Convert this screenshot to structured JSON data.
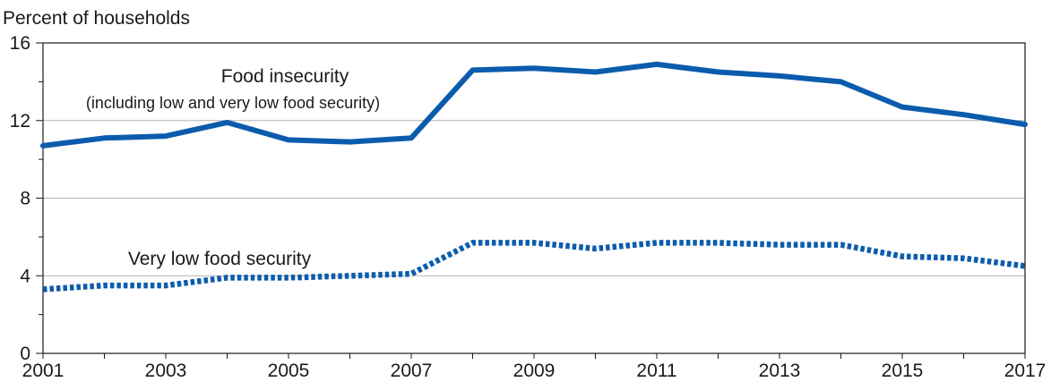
{
  "chart_data": {
    "type": "line",
    "ylabel": "Percent of households",
    "ylim": [
      0,
      16
    ],
    "xlim": [
      2001,
      2017
    ],
    "yticks": [
      0,
      4,
      8,
      12,
      16
    ],
    "yticks_label": [
      "0",
      "4",
      "8",
      "12",
      "16"
    ],
    "xticks": [
      2001,
      2003,
      2005,
      2007,
      2009,
      2011,
      2013,
      2015,
      2017
    ],
    "xticks_label": [
      "2001",
      "2003",
      "2005",
      "2007",
      "2009",
      "2011",
      "2013",
      "2015",
      "2017"
    ],
    "grid": "horizontal",
    "x": [
      2001,
      2002,
      2003,
      2004,
      2005,
      2006,
      2007,
      2008,
      2009,
      2010,
      2011,
      2012,
      2013,
      2014,
      2015,
      2016,
      2017
    ],
    "series": [
      {
        "name": "Food insecurity",
        "note": "(including low and very low food security)",
        "style": "solid",
        "color": "#0b5cad",
        "values": [
          10.7,
          11.1,
          11.2,
          11.9,
          11.0,
          10.9,
          11.1,
          14.6,
          14.7,
          14.5,
          14.9,
          14.5,
          14.3,
          14.0,
          12.7,
          12.3,
          11.8
        ]
      },
      {
        "name": "Very low food security",
        "style": "dotted",
        "color": "#0b5cad",
        "values": [
          3.3,
          3.5,
          3.5,
          3.9,
          3.9,
          4.0,
          4.1,
          5.7,
          5.7,
          5.4,
          5.7,
          5.7,
          5.6,
          5.6,
          5.0,
          4.9,
          4.5
        ]
      }
    ]
  }
}
